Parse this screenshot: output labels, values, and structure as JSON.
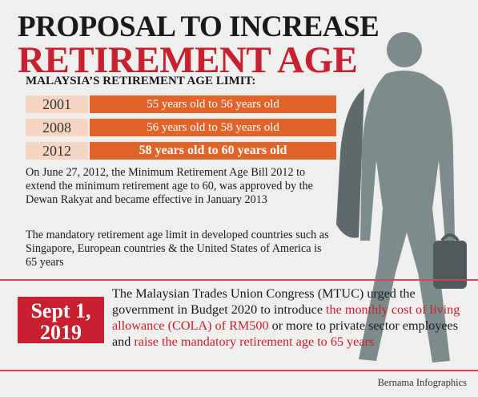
{
  "header": {
    "title_line1": "PROPOSAL TO INCREASE",
    "title_line2": "RETIREMENT AGE",
    "subtitle": "MALAYSIA’S RETIREMENT AGE LIMIT:"
  },
  "timeline": [
    {
      "year": "2001",
      "text": "55 years old to 56 years old"
    },
    {
      "year": "2008",
      "text": "56 years old to 58 years old"
    },
    {
      "year": "2012",
      "text": "58 years old to 60 years old"
    }
  ],
  "paragraphs": [
    "On June 27, 2012, the Minimum Retirement Age Bill 2012 to extend the minimum retirement age to 60, was approved by the Dewan Rakyat and became effective in January 2013",
    "The mandatory retirement age limit in developed countries such as Singapore, European countries & the United States of America is 65 years"
  ],
  "callout": {
    "date_line1": "Sept 1,",
    "date_line2": "2019",
    "text_parts": [
      {
        "text": "The Malaysian Trades Union Congress (MTUC) urged the government in Budget 2020 to introduce ",
        "highlight": false
      },
      {
        "text": "the monthly cost of living allowance (COLA) of RM500",
        "highlight": true
      },
      {
        "text": " or more to private sector employees and ",
        "highlight": false
      },
      {
        "text": "raise the mandatory retirement age to 65 years",
        "highlight": true
      }
    ]
  },
  "footer": {
    "credit": "Bernama Infographics"
  }
}
